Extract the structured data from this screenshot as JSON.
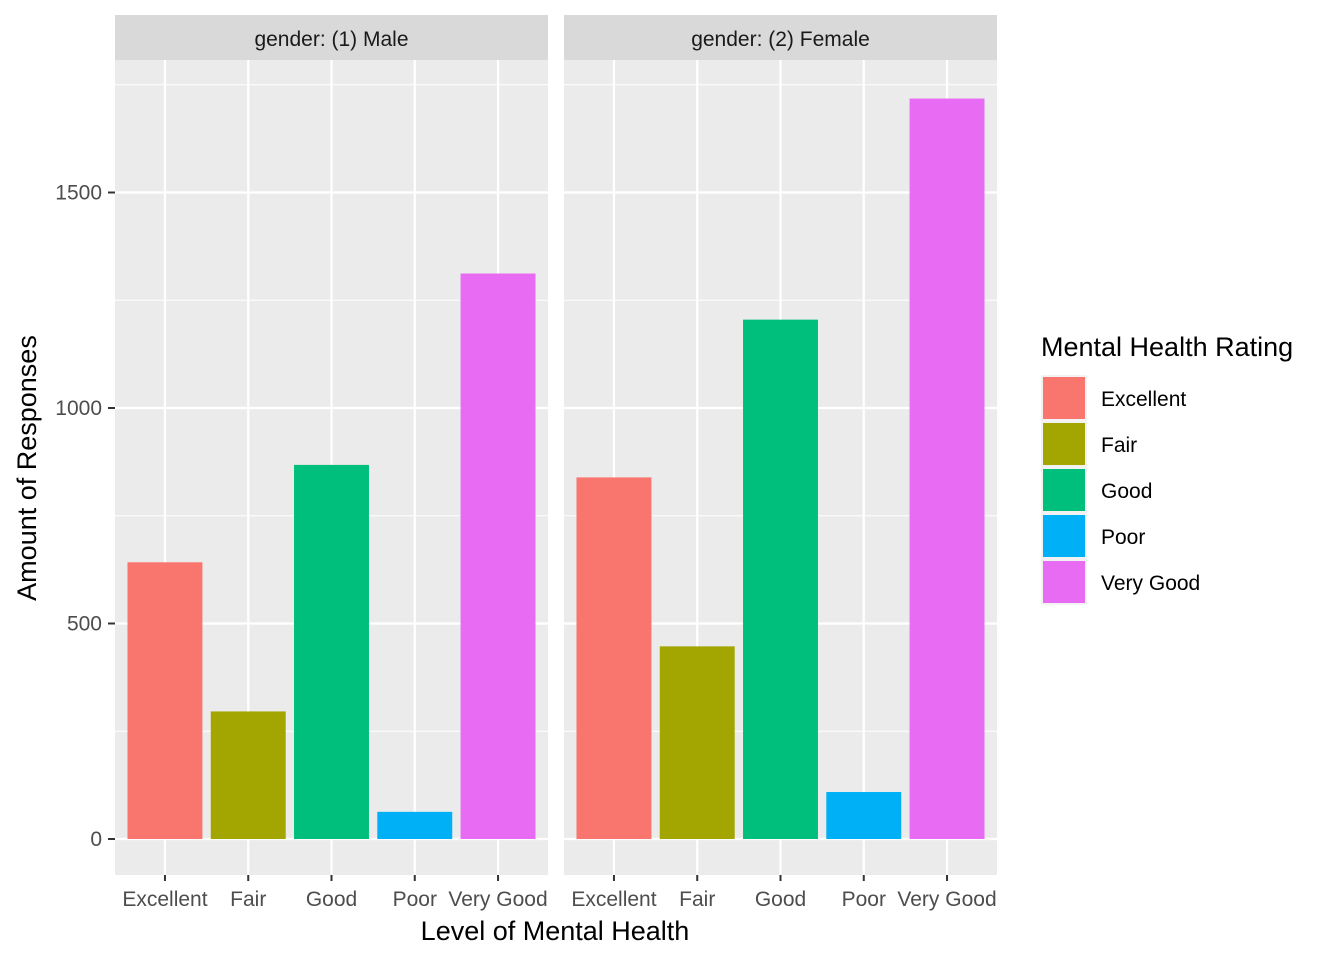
{
  "chart_data": {
    "type": "bar",
    "facet_variable": "gender",
    "facets": [
      {
        "label": "gender: (1) Male",
        "categories": [
          "Excellent",
          "Fair",
          "Good",
          "Poor",
          "Very Good"
        ],
        "values": [
          642,
          296,
          868,
          63,
          1312
        ]
      },
      {
        "label": "gender: (2) Female",
        "categories": [
          "Excellent",
          "Fair",
          "Good",
          "Poor",
          "Very Good"
        ],
        "values": [
          839,
          447,
          1205,
          109,
          1718
        ]
      }
    ],
    "xlabel": "Level of Mental Health",
    "ylabel": "Amount of Responses",
    "yticks": [
      0,
      500,
      1000,
      1500
    ],
    "ylim": [
      -80,
      1800
    ],
    "grid": true,
    "legend": {
      "title": "Mental Health Rating",
      "position": "right",
      "items": [
        {
          "label": "Excellent",
          "color": "#F8766D"
        },
        {
          "label": "Fair",
          "color": "#A3A500"
        },
        {
          "label": "Good",
          "color": "#00BF7D"
        },
        {
          "label": "Poor",
          "color": "#00B0F6"
        },
        {
          "label": "Very Good",
          "color": "#E76BF3"
        }
      ]
    },
    "colors": {
      "panel_background": "#EBEBEB",
      "grid_major": "#FFFFFF",
      "strip_background": "#D9D9D9"
    }
  }
}
